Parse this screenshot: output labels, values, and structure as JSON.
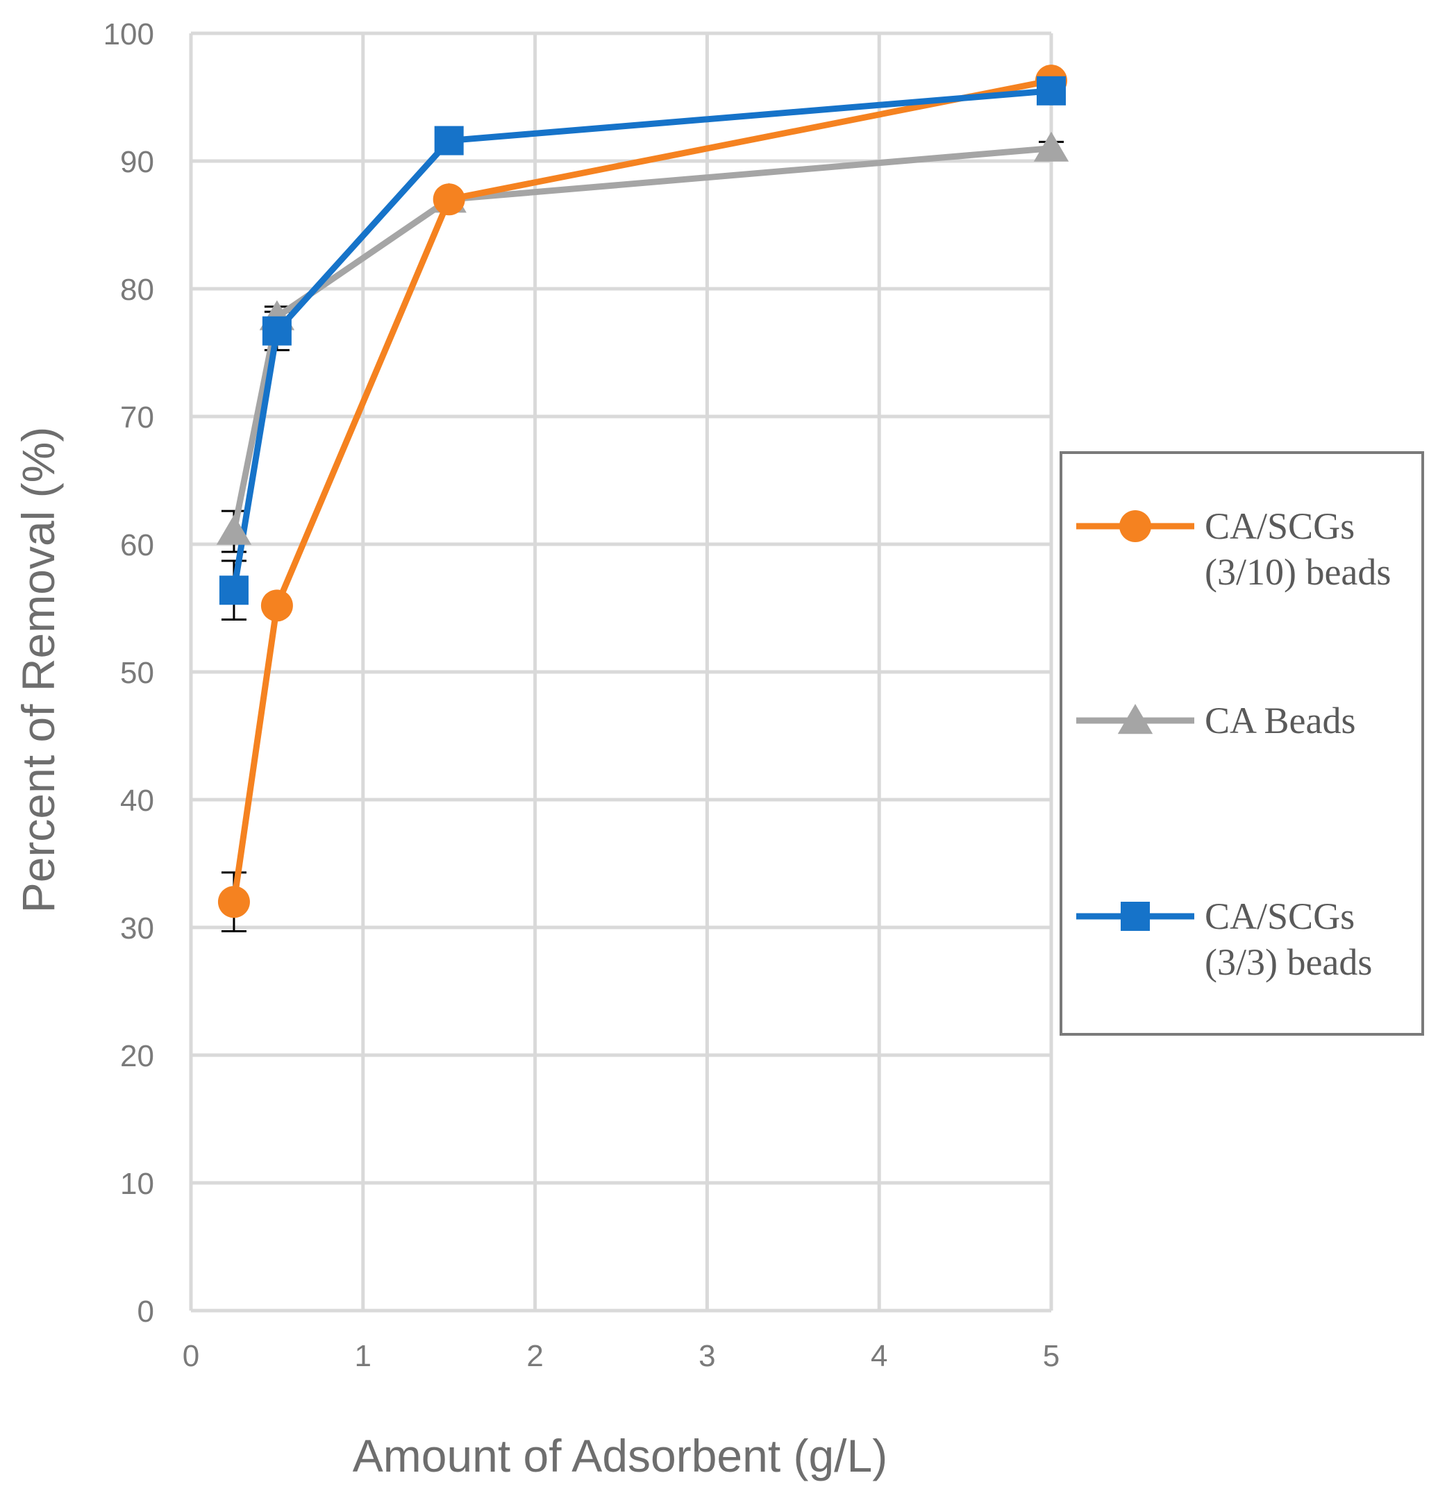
{
  "chart_data": {
    "type": "line",
    "title": "",
    "xlabel": "Amount of Adsorbent  (g/L)",
    "ylabel": "Percent  of Removal (%)",
    "xlim": [
      0,
      5
    ],
    "ylim": [
      0,
      100
    ],
    "xticks": [
      0,
      1,
      2,
      3,
      4,
      5
    ],
    "yticks": [
      0,
      10,
      20,
      30,
      40,
      50,
      60,
      70,
      80,
      90,
      100
    ],
    "grid": true,
    "legend_position": "right",
    "series": [
      {
        "name": "CA/SCGs (3/10) beads",
        "legend_lines": [
          "CA/SCGs",
          "(3/10) beads"
        ],
        "color": "#f58220",
        "marker": "circle",
        "x": [
          0.25,
          0.5,
          1.5,
          5
        ],
        "y": [
          32,
          55.2,
          87,
          96.3
        ],
        "error": [
          2.3,
          0.7,
          0.6,
          0.5
        ]
      },
      {
        "name": "CA Beads",
        "legend_lines": [
          "CA Beads"
        ],
        "color": "#a5a5a5",
        "marker": "triangle",
        "x": [
          0.25,
          0.5,
          1.5,
          5
        ],
        "y": [
          61,
          77.8,
          87,
          91
        ],
        "error": [
          1.6,
          0.8,
          0.6,
          0.5
        ]
      },
      {
        "name": "CA/SCGs (3/3) beads",
        "legend_lines": [
          "CA/SCGs",
          "(3/3) beads"
        ],
        "color": "#1673c9",
        "marker": "square",
        "x": [
          0.25,
          0.5,
          1.5,
          5
        ],
        "y": [
          56.4,
          76.7,
          91.6,
          95.5
        ],
        "error": [
          2.3,
          1.5,
          0.5,
          0.5
        ]
      }
    ]
  }
}
